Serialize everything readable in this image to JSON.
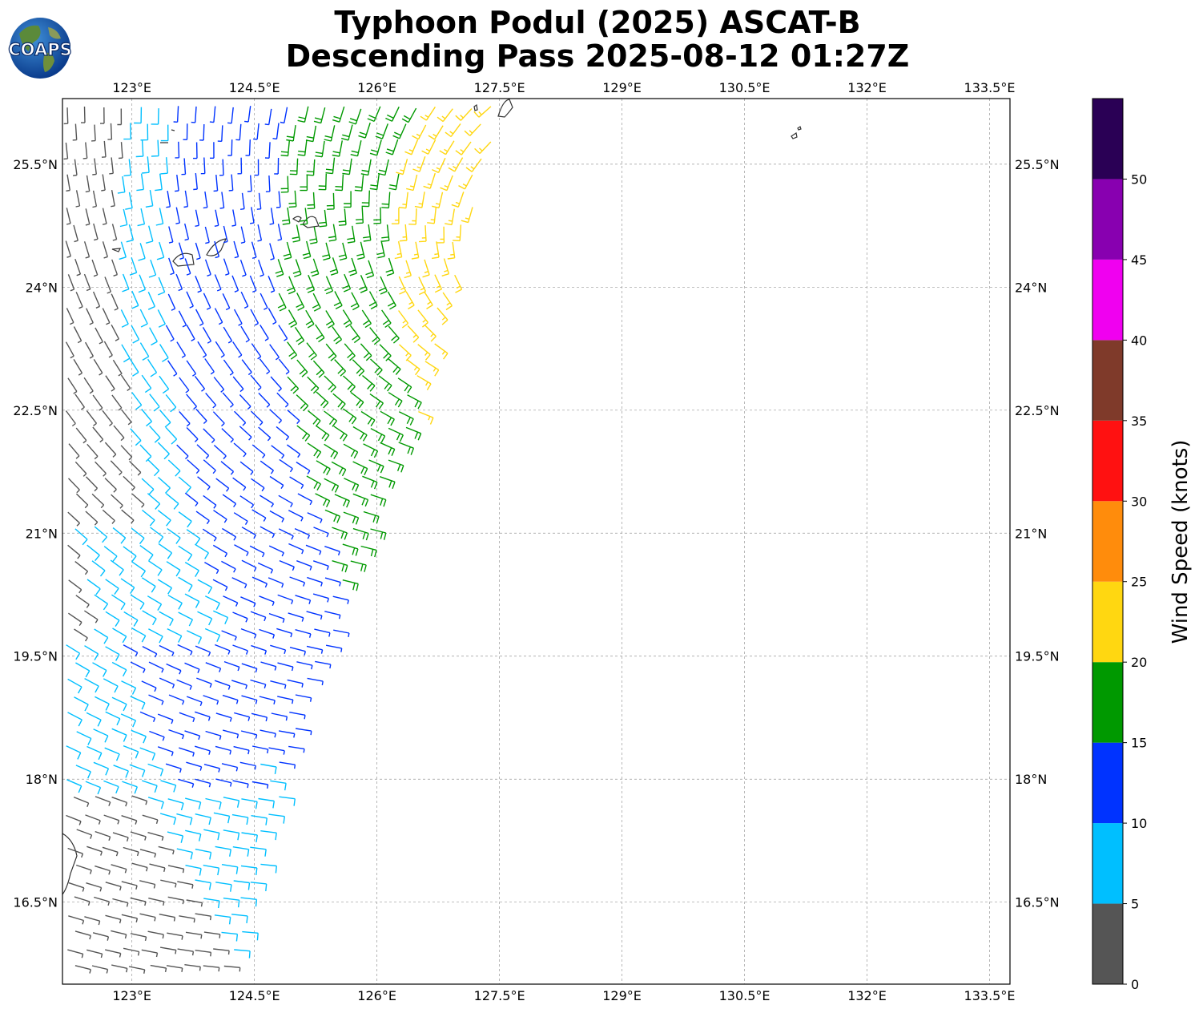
{
  "title": {
    "line1": "Typhoon Podul (2025) ASCAT-B",
    "line2": "Descending Pass 2025-08-12 01:27Z"
  },
  "logo": {
    "text": "COAPS",
    "icon": "globe-icon"
  },
  "map": {
    "lon_range": [
      122.15,
      133.75
    ],
    "lat_range": [
      15.5,
      26.3
    ],
    "lon_ticks": [
      "123°E",
      "124.5°E",
      "126°E",
      "127.5°E",
      "129°E",
      "130.5°E",
      "132°E",
      "133.5°E"
    ],
    "lon_tick_values": [
      123,
      124.5,
      126,
      127.5,
      129,
      130.5,
      132,
      133.5
    ],
    "lat_ticks": [
      "25.5°N",
      "24°N",
      "22.5°N",
      "21°N",
      "19.5°N",
      "18°N",
      "16.5°N"
    ],
    "lat_tick_values": [
      25.5,
      24,
      22.5,
      21,
      19.5,
      18,
      16.5
    ],
    "gridlines": true
  },
  "colorbar": {
    "label": "Wind Speed (knots)",
    "ticks": [
      "0",
      "5",
      "10",
      "15",
      "20",
      "25",
      "30",
      "35",
      "40",
      "45",
      "50"
    ],
    "bins": [
      {
        "min": 0,
        "max": 5,
        "color": "#555555"
      },
      {
        "min": 5,
        "max": 10,
        "color": "#00bfff"
      },
      {
        "min": 10,
        "max": 15,
        "color": "#0033ff"
      },
      {
        "min": 15,
        "max": 20,
        "color": "#009900"
      },
      {
        "min": 20,
        "max": 25,
        "color": "#ffd711"
      },
      {
        "min": 25,
        "max": 30,
        "color": "#ff8c0c"
      },
      {
        "min": 30,
        "max": 35,
        "color": "#ff1111"
      },
      {
        "min": 35,
        "max": 40,
        "color": "#7f3a2a"
      },
      {
        "min": 40,
        "max": 45,
        "color": "#f000f0"
      },
      {
        "min": 45,
        "max": 50,
        "color": "#8800b0"
      },
      {
        "min": 50,
        "max": 55,
        "color": "#2a0055"
      }
    ]
  }
}
